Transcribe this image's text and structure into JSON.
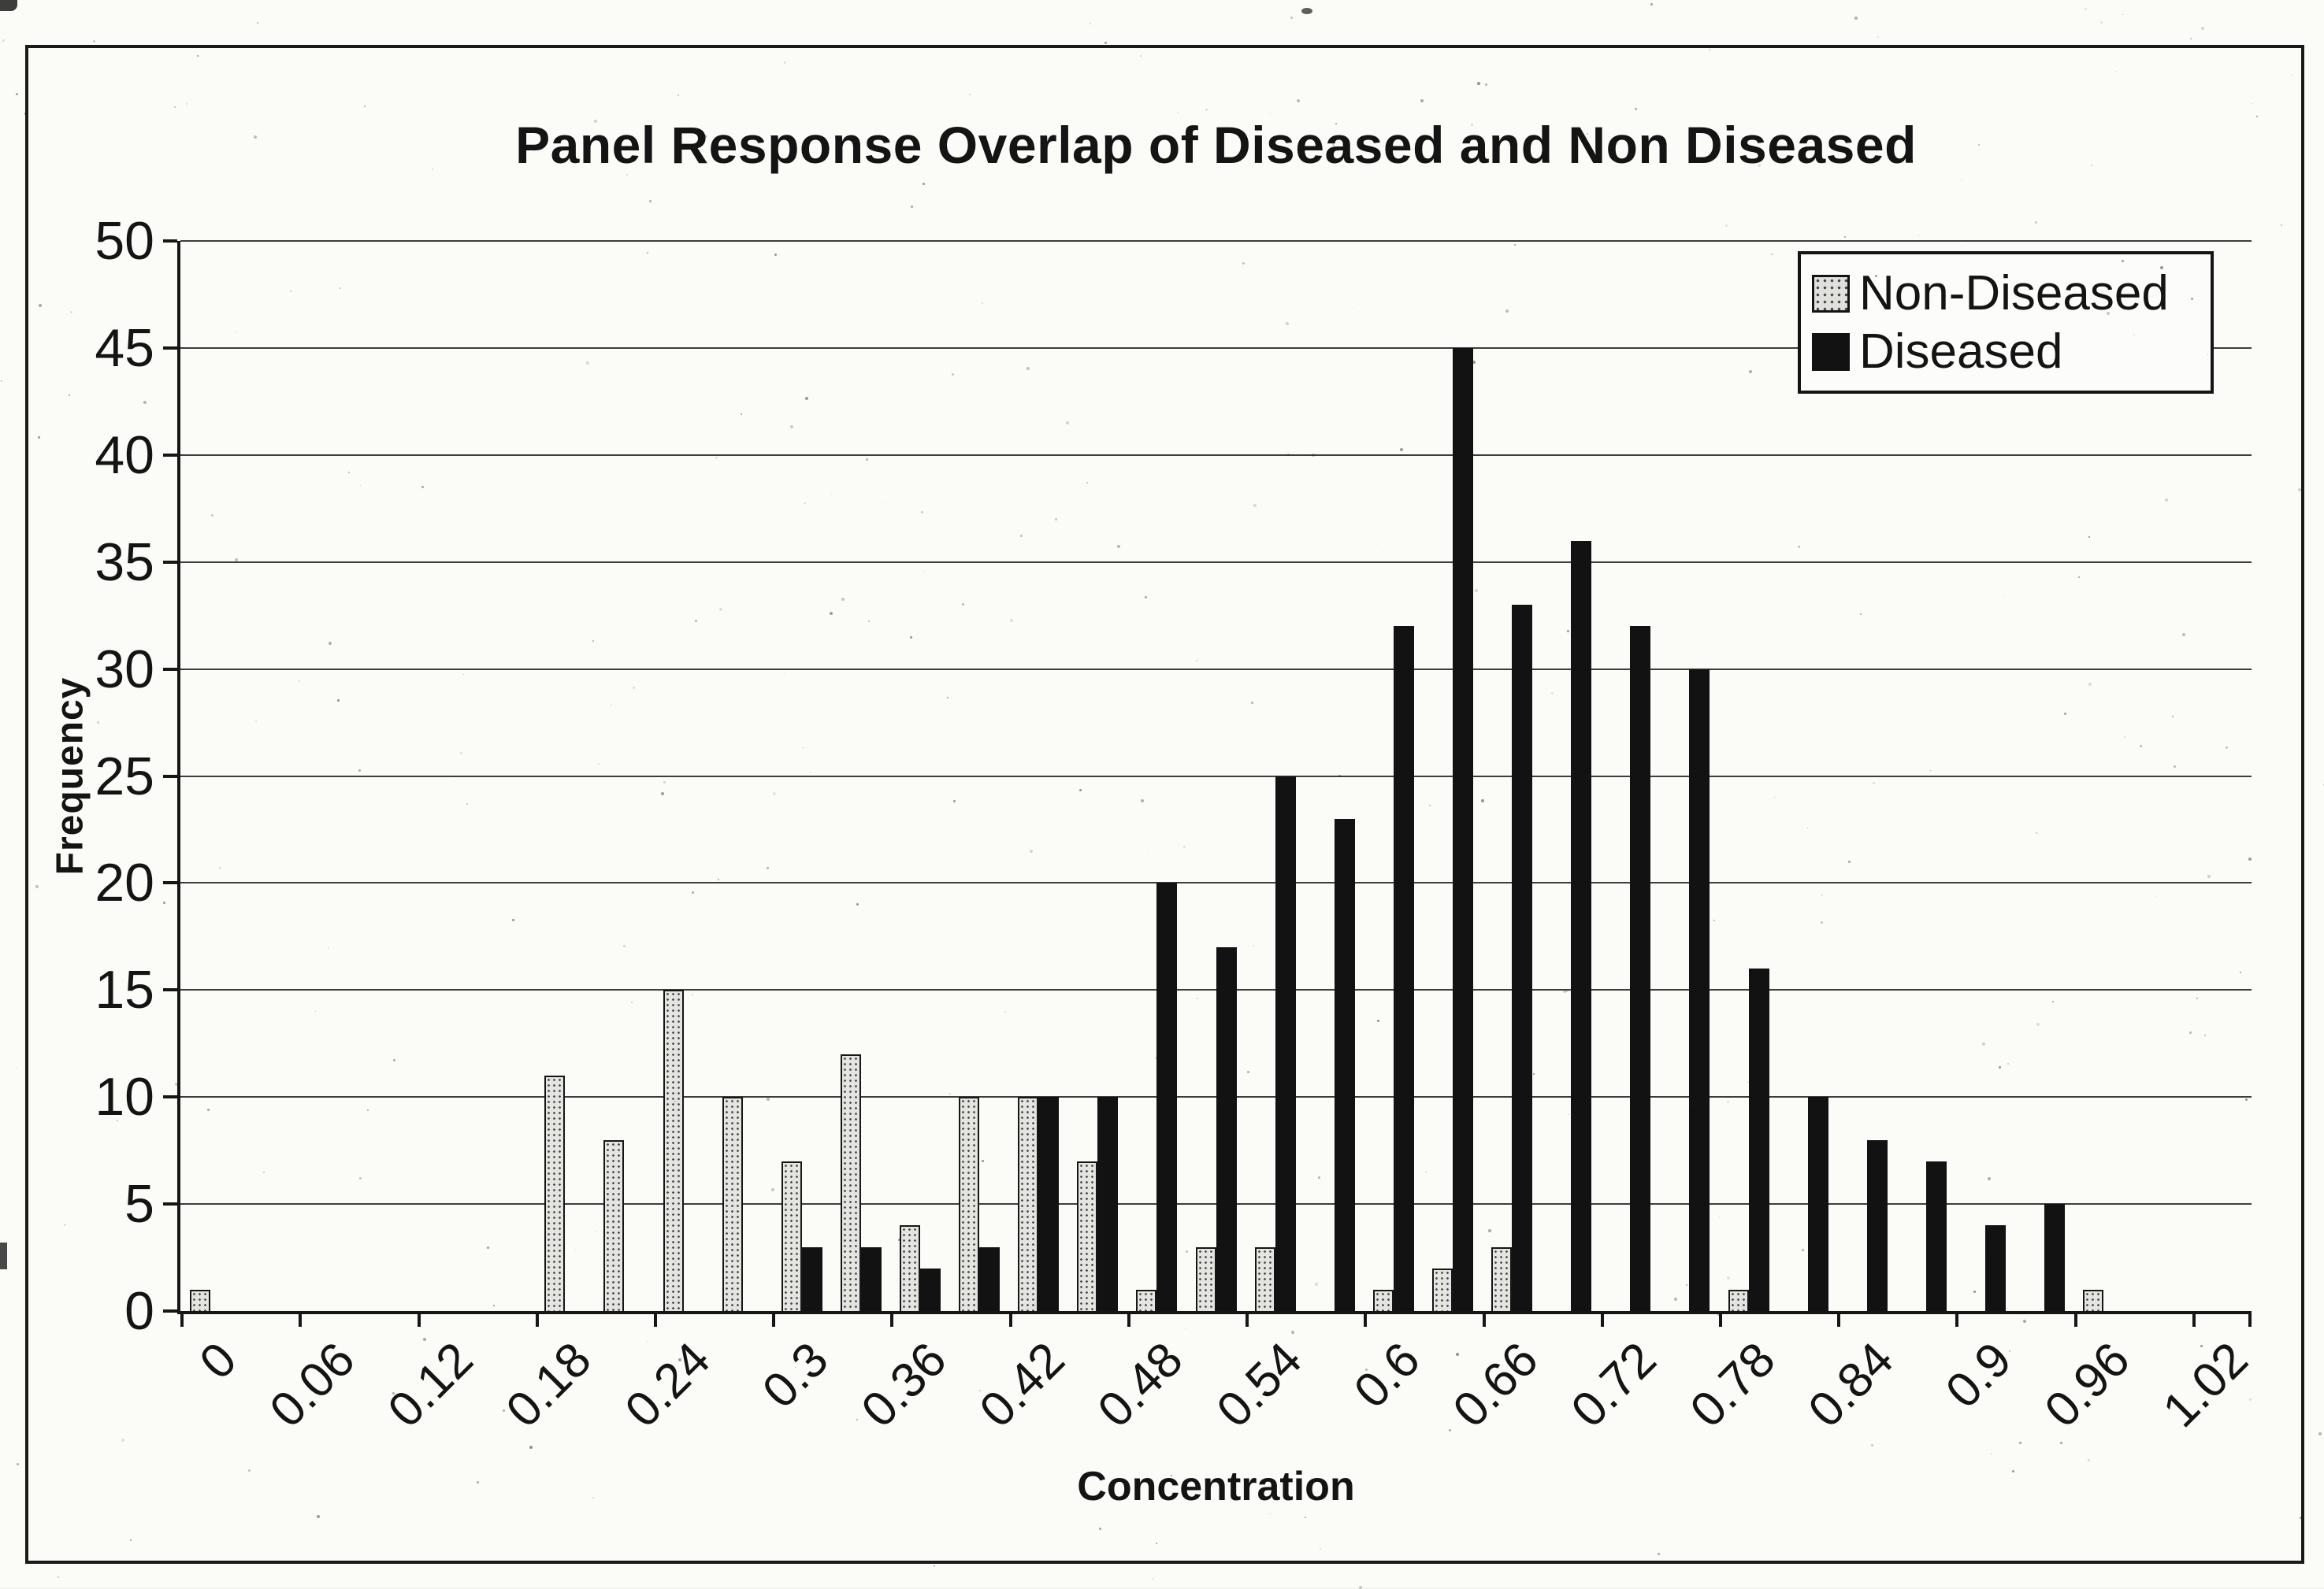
{
  "figure": {
    "kind": "scanned bar chart figure",
    "paper_color": "#fbfbf8",
    "ink_color": "#141414"
  },
  "chart_data": {
    "type": "bar",
    "title": "Panel Response Overlap of Diseased and Non Diseased",
    "xlabel": "Concentration",
    "ylabel": "Frequency",
    "ylim": [
      0,
      50
    ],
    "y_ticks": [
      0,
      5,
      10,
      15,
      20,
      25,
      30,
      35,
      40,
      45,
      50
    ],
    "grid": "horizontal",
    "legend_position": "top-right",
    "categories": [
      0,
      0.03,
      0.06,
      0.09,
      0.12,
      0.15,
      0.18,
      0.21,
      0.24,
      0.27,
      0.3,
      0.33,
      0.36,
      0.39,
      0.42,
      0.45,
      0.48,
      0.51,
      0.54,
      0.57,
      0.6,
      0.63,
      0.66,
      0.69,
      0.72,
      0.75,
      0.78,
      0.81,
      0.84,
      0.87,
      0.9,
      0.93,
      0.96,
      0.99,
      1.02
    ],
    "x_tick_labels": [
      "0",
      "0.06",
      "0.12",
      "0.18",
      "0.24",
      "0.3",
      "0.36",
      "0.42",
      "0.48",
      "0.54",
      "0.6",
      "0.66",
      "0.72",
      "0.78",
      "0.84",
      "0.9",
      "0.96",
      "1.02"
    ],
    "series": [
      {
        "name": "Non-Diseased",
        "style": "stipple",
        "color": "#e4e4e1",
        "dot_color": "#4f4f4f",
        "values": [
          1,
          0,
          0,
          0,
          0,
          0,
          11,
          8,
          15,
          10,
          7,
          12,
          4,
          10,
          10,
          7,
          1,
          3,
          3,
          0,
          1,
          2,
          3,
          0,
          0,
          0,
          1,
          0,
          0,
          0,
          0,
          0,
          1,
          0,
          0
        ]
      },
      {
        "name": "Diseased",
        "style": "solid",
        "color": "#121212",
        "values": [
          0,
          0,
          0,
          0,
          0,
          0,
          0,
          0,
          0,
          0,
          3,
          3,
          2,
          3,
          10,
          10,
          20,
          17,
          25,
          23,
          32,
          45,
          33,
          36,
          32,
          30,
          16,
          10,
          8,
          7,
          4,
          5,
          0,
          0,
          0
        ]
      }
    ]
  }
}
